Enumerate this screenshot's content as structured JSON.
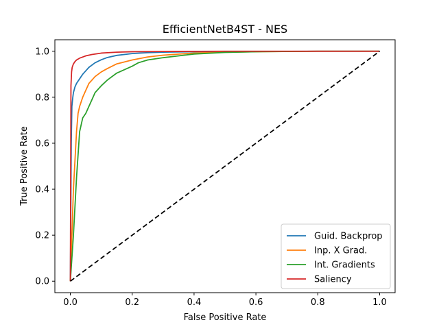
{
  "chart_data": {
    "type": "line",
    "title": "EfficientNetB4ST - NES",
    "xlabel": "False Positive Rate",
    "ylabel": "True Positive Rate",
    "xlim": [
      -0.05,
      1.05
    ],
    "ylim": [
      -0.05,
      1.05
    ],
    "xticks": [
      0.0,
      0.2,
      0.4,
      0.6,
      0.8,
      1.0
    ],
    "yticks": [
      0.0,
      0.2,
      0.4,
      0.6,
      0.8,
      1.0
    ],
    "xtick_labels": [
      "0.0",
      "0.2",
      "0.4",
      "0.6",
      "0.8",
      "1.0"
    ],
    "ytick_labels": [
      "0.0",
      "0.2",
      "0.4",
      "0.6",
      "0.8",
      "1.0"
    ],
    "grid": false,
    "legend_position": "lower-right",
    "series": [
      {
        "name": "Guid. Backprop",
        "color": "#1f77b4",
        "x": [
          0.0,
          0.003,
          0.005,
          0.008,
          0.01,
          0.015,
          0.02,
          0.03,
          0.04,
          0.05,
          0.06,
          0.08,
          0.1,
          0.12,
          0.15,
          0.2,
          0.25,
          0.3,
          0.4,
          0.5,
          0.6,
          0.8,
          1.0
        ],
        "y": [
          0.0,
          0.6,
          0.76,
          0.8,
          0.82,
          0.845,
          0.86,
          0.88,
          0.9,
          0.915,
          0.93,
          0.95,
          0.963,
          0.973,
          0.982,
          0.99,
          0.994,
          0.996,
          0.998,
          0.999,
          0.999,
          1.0,
          1.0
        ]
      },
      {
        "name": "Inp. X Grad.",
        "color": "#ff7f0e",
        "x": [
          0.0,
          0.01,
          0.02,
          0.025,
          0.03,
          0.04,
          0.05,
          0.06,
          0.08,
          0.1,
          0.12,
          0.15,
          0.2,
          0.25,
          0.3,
          0.4,
          0.5,
          0.6,
          0.8,
          1.0
        ],
        "y": [
          0.0,
          0.4,
          0.65,
          0.73,
          0.76,
          0.8,
          0.83,
          0.86,
          0.89,
          0.91,
          0.925,
          0.945,
          0.962,
          0.975,
          0.983,
          0.992,
          0.996,
          0.998,
          1.0,
          1.0
        ]
      },
      {
        "name": "Int. Gradients",
        "color": "#2ca02c",
        "x": [
          0.0,
          0.01,
          0.02,
          0.03,
          0.04,
          0.05,
          0.06,
          0.07,
          0.08,
          0.1,
          0.12,
          0.15,
          0.2,
          0.22,
          0.25,
          0.3,
          0.35,
          0.4,
          0.5,
          0.6,
          0.8,
          1.0
        ],
        "y": [
          0.0,
          0.2,
          0.45,
          0.65,
          0.71,
          0.73,
          0.76,
          0.79,
          0.82,
          0.85,
          0.875,
          0.905,
          0.935,
          0.95,
          0.962,
          0.972,
          0.98,
          0.988,
          0.995,
          0.998,
          1.0,
          1.0
        ]
      },
      {
        "name": "Saliency",
        "color": "#d62728",
        "x": [
          0.0,
          0.002,
          0.004,
          0.006,
          0.01,
          0.015,
          0.02,
          0.03,
          0.04,
          0.05,
          0.07,
          0.1,
          0.15,
          0.2,
          0.3,
          0.5,
          1.0
        ],
        "y": [
          0.0,
          0.85,
          0.91,
          0.93,
          0.945,
          0.955,
          0.962,
          0.97,
          0.975,
          0.98,
          0.986,
          0.992,
          0.996,
          0.998,
          0.999,
          1.0,
          1.0
        ]
      }
    ],
    "reference_line": {
      "x": [
        0.0,
        1.0
      ],
      "y": [
        0.0,
        1.0
      ],
      "color": "#000000",
      "style": "dashed"
    }
  }
}
